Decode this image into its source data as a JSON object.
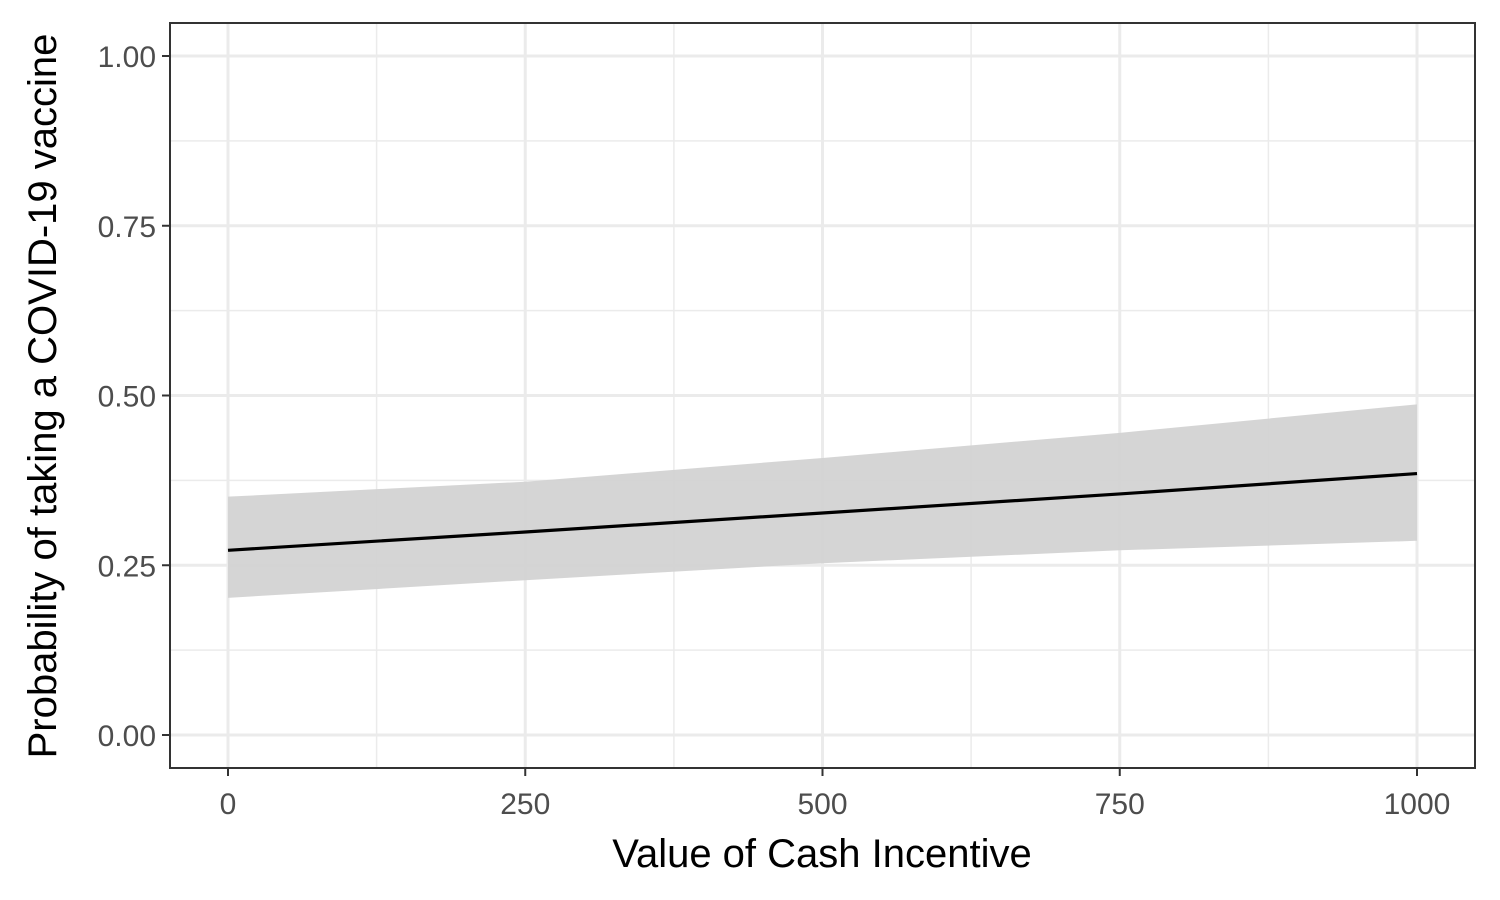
{
  "chart_data": {
    "type": "line",
    "title": "",
    "xlabel": "Value of Cash Incentive",
    "ylabel": "Probability of taking a COVID-19 vaccine",
    "xlim": [
      -100,
      1050
    ],
    "ylim": [
      -0.05,
      1.05
    ],
    "x_ticks": [
      0,
      250,
      500,
      750,
      1000
    ],
    "x_tick_labels": [
      "0",
      "250",
      "500",
      "750",
      "1000"
    ],
    "y_ticks": [
      0,
      0.25,
      0.5,
      0.75,
      1
    ],
    "y_tick_labels": [
      "0.00",
      "0.25",
      "0.50",
      "0.75",
      "1.00"
    ],
    "grid": true,
    "legend": "none",
    "series": [
      {
        "x": [
          0,
          250,
          500,
          750,
          1000
        ],
        "y": [
          0.272,
          0.299,
          0.327,
          0.355,
          0.385
        ],
        "ci_lower": [
          0.202,
          0.228,
          0.253,
          0.272,
          0.286
        ],
        "ci_upper": [
          0.351,
          0.373,
          0.408,
          0.445,
          0.487
        ]
      }
    ]
  },
  "colors": {
    "line": "#000000",
    "ribbon": "#d3d3d3",
    "grid": "#ebebeb",
    "panel_border": "#333333",
    "tick_text": "#4d4d4d"
  }
}
